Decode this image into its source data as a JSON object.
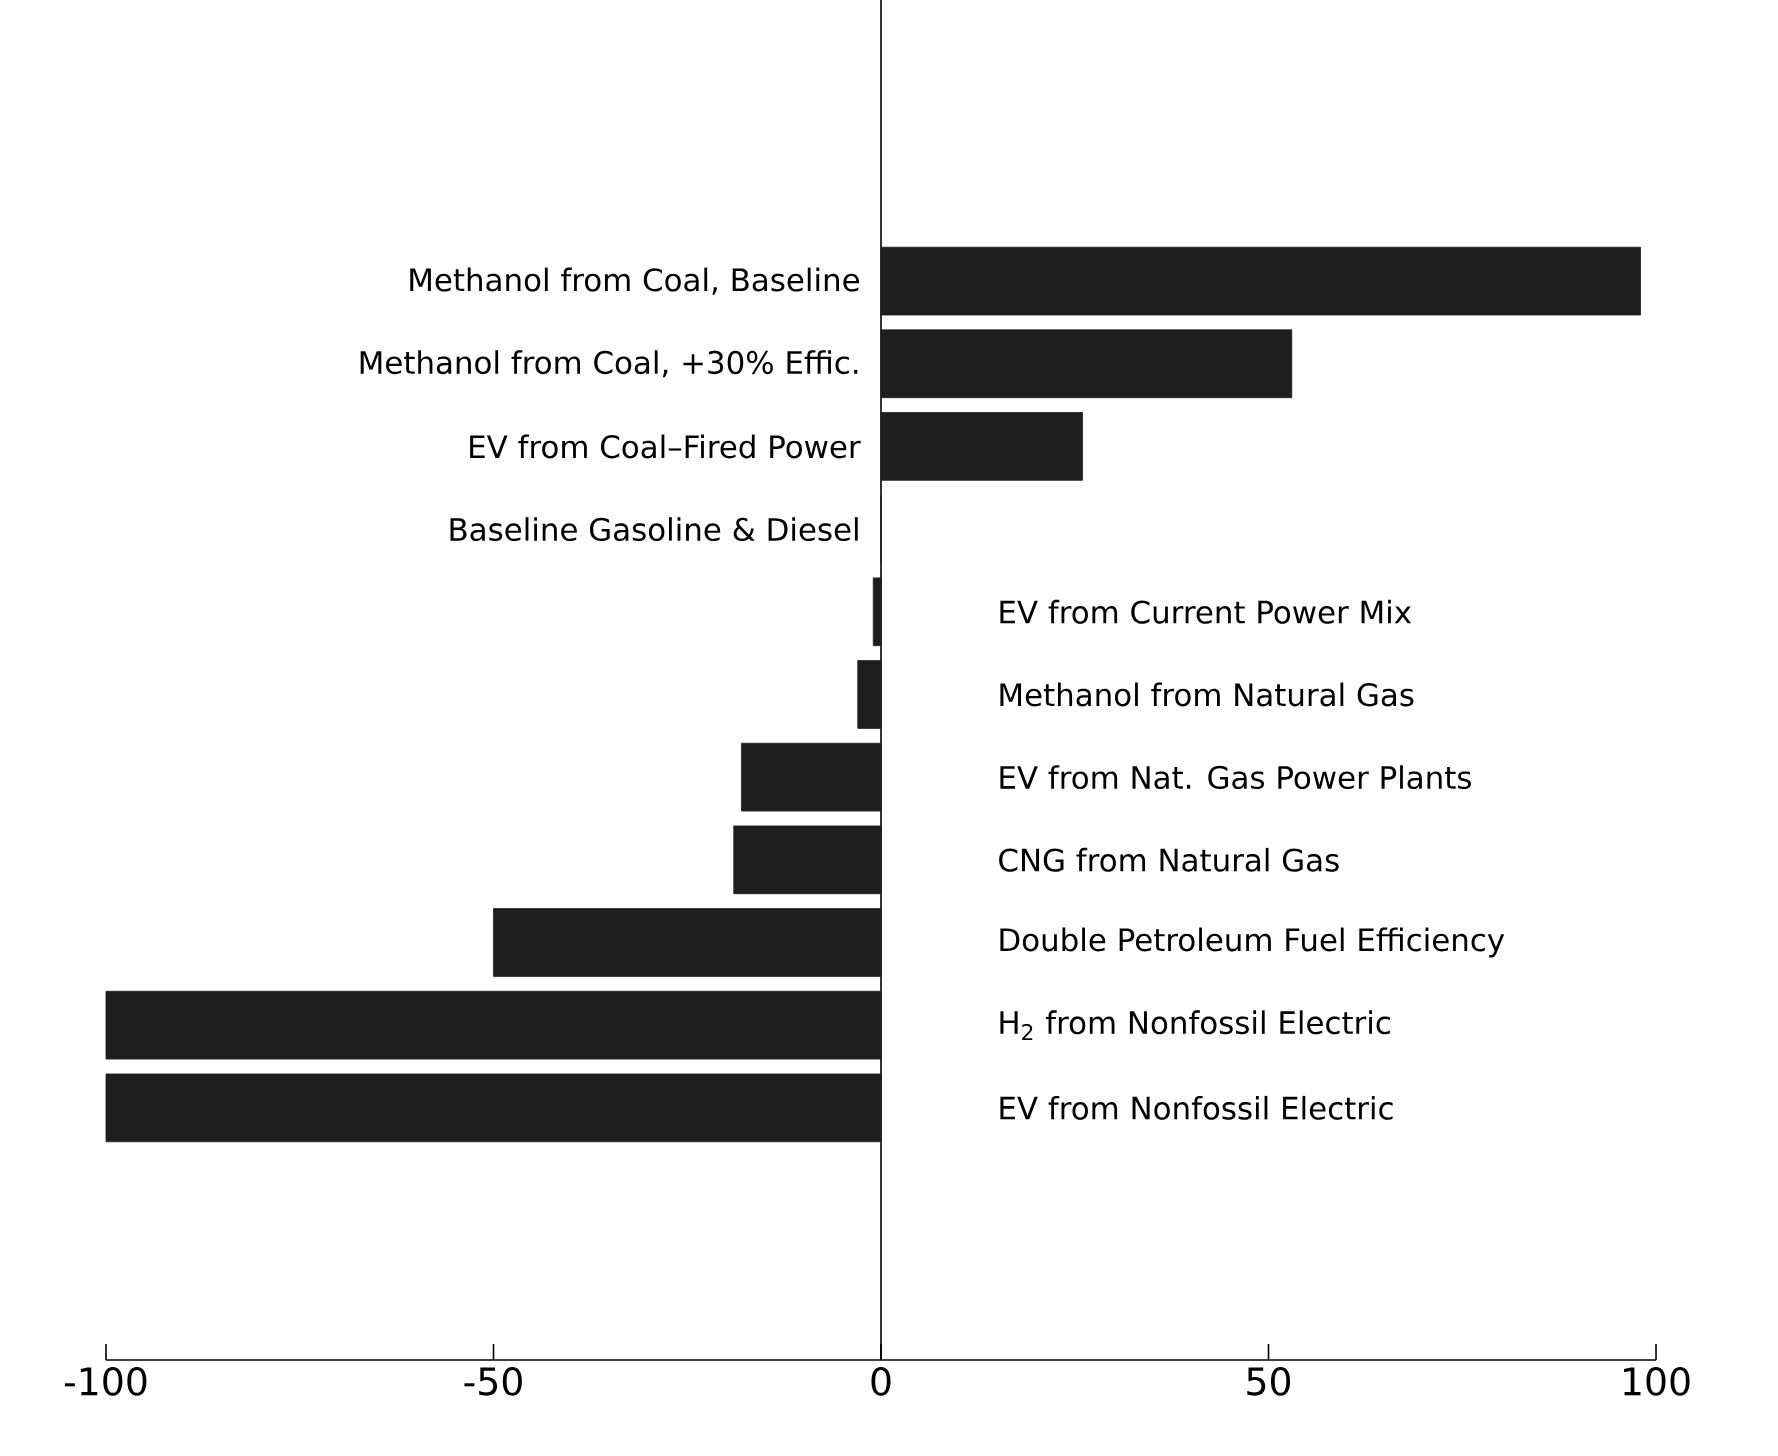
{
  "chart_data": {
    "type": "bar",
    "orientation": "horizontal",
    "categories": [
      "Methanol from Coal, Baseline",
      "Methanol from Coal, +30% Effic.",
      "EV from Coal–Fired Power",
      "Baseline Gasoline & Diesel",
      "EV from Current Power Mix",
      "Methanol from Natural Gas",
      "EV from Nat. Gas Power Plants",
      "CNG from Natural Gas",
      "Double Petroleum Fuel Efficiency",
      "H$_{2}$ from Nonfossil Electric",
      "EV from Nonfossil Electric"
    ],
    "values": [
      98,
      53,
      26,
      0,
      -1,
      -3,
      -18,
      -19,
      -50,
      -100,
      -100
    ],
    "color": "#1e1e1e",
    "xlim": [
      -100,
      100
    ],
    "xticks": [
      -100,
      -50,
      0,
      50,
      100
    ],
    "tick_labels": "x"
  }
}
